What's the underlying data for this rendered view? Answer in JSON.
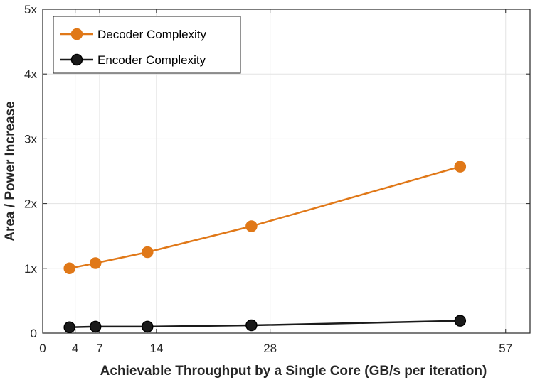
{
  "chart_data": {
    "type": "line",
    "xlabel": "Achievable Throughput by a Single Core (GB/s per iteration)",
    "ylabel": "Area / Power Increase",
    "xlim": [
      0,
      60
    ],
    "ylim": [
      0,
      5
    ],
    "xticks": [
      0,
      4,
      7,
      14,
      28,
      57
    ],
    "xtick_labels": [
      "0",
      "4",
      "7",
      "14",
      "28",
      "57"
    ],
    "yticks": [
      0,
      1,
      2,
      3,
      4,
      5
    ],
    "ytick_labels": [
      "0",
      "1x",
      "2x",
      "3x",
      "4x",
      "5x"
    ],
    "grid": true,
    "legend_position": "top-left",
    "series": [
      {
        "name": "Decoder Complexity",
        "color": "#E07818",
        "x": [
          3.3,
          6.5,
          12.9,
          25.7,
          51.4
        ],
        "y": [
          1.0,
          1.08,
          1.25,
          1.65,
          2.57
        ]
      },
      {
        "name": "Encoder Complexity",
        "color": "#1a1a1a",
        "x": [
          3.3,
          6.5,
          12.9,
          25.7,
          51.4
        ],
        "y": [
          0.09,
          0.1,
          0.1,
          0.12,
          0.19
        ]
      }
    ]
  }
}
